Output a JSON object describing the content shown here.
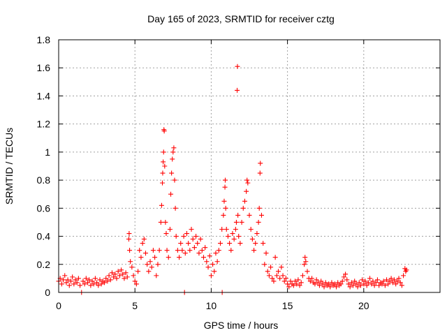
{
  "chart_data": {
    "type": "scatter",
    "title": "Day 165 of 2023, SRMTID for receiver cztg",
    "xlabel": "GPS time / hours",
    "ylabel": "SRMTID / TECUs",
    "xlim": [
      0,
      25
    ],
    "ylim": [
      0,
      1.8
    ],
    "x_ticks": [
      "0",
      "5",
      "10",
      "15",
      "20"
    ],
    "y_ticks": [
      "0",
      "0.2",
      "0.4",
      "0.6",
      "0.8",
      "1",
      "1.2",
      "1.4",
      "1.6",
      "1.8"
    ],
    "grid": true,
    "marker": "plus",
    "color": "#ff0000",
    "series": [
      {
        "name": "SRMTID",
        "points": [
          [
            0.0,
            0.08
          ],
          [
            0.1,
            0.1
          ],
          [
            0.2,
            0.06
          ],
          [
            0.3,
            0.09
          ],
          [
            0.4,
            0.12
          ],
          [
            0.5,
            0.07
          ],
          [
            0.6,
            0.09
          ],
          [
            0.7,
            0.05
          ],
          [
            0.8,
            0.08
          ],
          [
            0.9,
            0.11
          ],
          [
            1.0,
            0.06
          ],
          [
            1.1,
            0.09
          ],
          [
            1.2,
            0.07
          ],
          [
            1.3,
            0.1
          ],
          [
            1.4,
            0.05
          ],
          [
            1.5,
            0.0
          ],
          [
            1.6,
            0.08
          ],
          [
            1.7,
            0.06
          ],
          [
            1.8,
            0.1
          ],
          [
            1.9,
            0.07
          ],
          [
            2.0,
            0.09
          ],
          [
            2.1,
            0.05
          ],
          [
            2.2,
            0.08
          ],
          [
            2.3,
            0.06
          ],
          [
            2.4,
            0.1
          ],
          [
            2.5,
            0.07
          ],
          [
            2.6,
            0.05
          ],
          [
            2.7,
            0.09
          ],
          [
            2.8,
            0.06
          ],
          [
            2.9,
            0.08
          ],
          [
            3.0,
            0.07
          ],
          [
            3.1,
            0.1
          ],
          [
            3.2,
            0.08
          ],
          [
            3.3,
            0.12
          ],
          [
            3.4,
            0.09
          ],
          [
            3.5,
            0.14
          ],
          [
            3.6,
            0.11
          ],
          [
            3.7,
            0.13
          ],
          [
            3.8,
            0.1
          ],
          [
            3.9,
            0.15
          ],
          [
            4.0,
            0.12
          ],
          [
            4.1,
            0.16
          ],
          [
            4.2,
            0.13
          ],
          [
            4.3,
            0.1
          ],
          [
            4.4,
            0.14
          ],
          [
            4.5,
            0.11
          ],
          [
            4.6,
            0.38
          ],
          [
            4.62,
            0.42
          ],
          [
            4.65,
            0.3
          ],
          [
            4.7,
            0.22
          ],
          [
            4.8,
            0.18
          ],
          [
            4.9,
            0.12
          ],
          [
            5.0,
            0.08
          ],
          [
            5.1,
            0.06
          ],
          [
            5.2,
            0.15
          ],
          [
            5.3,
            0.3
          ],
          [
            5.4,
            0.25
          ],
          [
            5.5,
            0.35
          ],
          [
            5.6,
            0.38
          ],
          [
            5.7,
            0.28
          ],
          [
            5.8,
            0.2
          ],
          [
            5.9,
            0.15
          ],
          [
            6.0,
            0.22
          ],
          [
            6.1,
            0.18
          ],
          [
            6.2,
            0.3
          ],
          [
            6.3,
            0.25
          ],
          [
            6.4,
            0.12
          ],
          [
            6.5,
            0.2
          ],
          [
            6.6,
            0.3
          ],
          [
            6.7,
            0.5
          ],
          [
            6.75,
            0.62
          ],
          [
            6.8,
            0.78
          ],
          [
            6.82,
            0.85
          ],
          [
            6.85,
            0.93
          ],
          [
            6.88,
            1.0
          ],
          [
            6.9,
            1.16
          ],
          [
            6.92,
            1.15
          ],
          [
            6.95,
            0.9
          ],
          [
            7.0,
            0.5
          ],
          [
            7.05,
            0.42
          ],
          [
            7.1,
            0.3
          ],
          [
            7.2,
            0.25
          ],
          [
            7.3,
            0.45
          ],
          [
            7.35,
            0.7
          ],
          [
            7.4,
            0.85
          ],
          [
            7.45,
            0.95
          ],
          [
            7.5,
            1.0
          ],
          [
            7.55,
            1.03
          ],
          [
            7.6,
            0.8
          ],
          [
            7.65,
            0.6
          ],
          [
            7.7,
            0.4
          ],
          [
            7.8,
            0.3
          ],
          [
            7.9,
            0.25
          ],
          [
            8.0,
            0.35
          ],
          [
            8.1,
            0.3
          ],
          [
            8.2,
            0.4
          ],
          [
            8.25,
            0.0
          ],
          [
            8.3,
            0.28
          ],
          [
            8.4,
            0.42
          ],
          [
            8.5,
            0.35
          ],
          [
            8.6,
            0.3
          ],
          [
            8.7,
            0.45
          ],
          [
            8.8,
            0.38
          ],
          [
            8.9,
            0.32
          ],
          [
            9.0,
            0.4
          ],
          [
            9.1,
            0.35
          ],
          [
            9.2,
            0.28
          ],
          [
            9.3,
            0.38
          ],
          [
            9.4,
            0.3
          ],
          [
            9.5,
            0.25
          ],
          [
            9.6,
            0.32
          ],
          [
            9.7,
            0.22
          ],
          [
            9.8,
            0.18
          ],
          [
            9.9,
            0.26
          ],
          [
            10.0,
            0.12
          ],
          [
            10.1,
            0.2
          ],
          [
            10.2,
            0.15
          ],
          [
            10.3,
            0.28
          ],
          [
            10.4,
            0.22
          ],
          [
            10.5,
            0.3
          ],
          [
            10.6,
            0.35
          ],
          [
            10.7,
            0.45
          ],
          [
            10.72,
            0.0
          ],
          [
            10.8,
            0.55
          ],
          [
            10.85,
            0.65
          ],
          [
            10.9,
            0.75
          ],
          [
            10.92,
            0.8
          ],
          [
            10.95,
            0.6
          ],
          [
            11.0,
            0.45
          ],
          [
            11.1,
            0.4
          ],
          [
            11.2,
            0.35
          ],
          [
            11.3,
            0.3
          ],
          [
            11.4,
            0.42
          ],
          [
            11.5,
            0.38
          ],
          [
            11.6,
            0.45
          ],
          [
            11.65,
            0.5
          ],
          [
            11.7,
            1.44
          ],
          [
            11.72,
            1.61
          ],
          [
            11.75,
            0.55
          ],
          [
            11.8,
            0.4
          ],
          [
            11.9,
            0.35
          ],
          [
            12.0,
            0.5
          ],
          [
            12.1,
            0.6
          ],
          [
            12.2,
            0.65
          ],
          [
            12.3,
            0.72
          ],
          [
            12.35,
            0.8
          ],
          [
            12.4,
            0.78
          ],
          [
            12.5,
            0.55
          ],
          [
            12.6,
            0.45
          ],
          [
            12.7,
            0.38
          ],
          [
            12.8,
            0.3
          ],
          [
            12.9,
            0.35
          ],
          [
            13.0,
            0.42
          ],
          [
            13.1,
            0.5
          ],
          [
            13.15,
            0.6
          ],
          [
            13.2,
            0.85
          ],
          [
            13.22,
            0.92
          ],
          [
            13.3,
            0.55
          ],
          [
            13.4,
            0.35
          ],
          [
            13.5,
            0.2
          ],
          [
            13.6,
            0.28
          ],
          [
            13.7,
            0.15
          ],
          [
            13.8,
            0.12
          ],
          [
            13.9,
            0.18
          ],
          [
            14.0,
            0.1
          ],
          [
            14.1,
            0.08
          ],
          [
            14.2,
            0.25
          ],
          [
            14.3,
            0.12
          ],
          [
            14.4,
            0.15
          ],
          [
            14.5,
            0.1
          ],
          [
            14.6,
            0.18
          ],
          [
            14.7,
            0.12
          ],
          [
            14.8,
            0.08
          ],
          [
            14.9,
            0.1
          ],
          [
            15.0,
            0.06
          ],
          [
            15.1,
            0.04
          ],
          [
            15.2,
            0.08
          ],
          [
            15.3,
            0.06
          ],
          [
            15.4,
            0.05
          ],
          [
            15.5,
            0.08
          ],
          [
            15.6,
            0.06
          ],
          [
            15.7,
            0.09
          ],
          [
            15.8,
            0.05
          ],
          [
            15.9,
            0.07
          ],
          [
            16.0,
            0.12
          ],
          [
            16.1,
            0.2
          ],
          [
            16.15,
            0.25
          ],
          [
            16.2,
            0.22
          ],
          [
            16.3,
            0.15
          ],
          [
            16.4,
            0.1
          ],
          [
            16.5,
            0.08
          ],
          [
            16.6,
            0.1
          ],
          [
            16.7,
            0.07
          ],
          [
            16.8,
            0.06
          ],
          [
            16.9,
            0.09
          ],
          [
            17.0,
            0.07
          ],
          [
            17.1,
            0.05
          ],
          [
            17.2,
            0.08
          ],
          [
            17.3,
            0.06
          ],
          [
            17.4,
            0.04
          ],
          [
            17.5,
            0.07
          ],
          [
            17.6,
            0.05
          ],
          [
            17.7,
            0.06
          ],
          [
            17.8,
            0.04
          ],
          [
            17.9,
            0.07
          ],
          [
            18.0,
            0.05
          ],
          [
            18.1,
            0.06
          ],
          [
            18.2,
            0.04
          ],
          [
            18.3,
            0.07
          ],
          [
            18.4,
            0.05
          ],
          [
            18.5,
            0.06
          ],
          [
            18.6,
            0.08
          ],
          [
            18.7,
            0.11
          ],
          [
            18.8,
            0.13
          ],
          [
            18.9,
            0.09
          ],
          [
            19.0,
            0.06
          ],
          [
            19.1,
            0.04
          ],
          [
            19.2,
            0.07
          ],
          [
            19.3,
            0.05
          ],
          [
            19.4,
            0.08
          ],
          [
            19.5,
            0.06
          ],
          [
            19.6,
            0.04
          ],
          [
            19.7,
            0.07
          ],
          [
            19.8,
            0.05
          ],
          [
            19.9,
            0.09
          ],
          [
            20.0,
            0.06
          ],
          [
            20.1,
            0.08
          ],
          [
            20.2,
            0.05
          ],
          [
            20.3,
            0.07
          ],
          [
            20.4,
            0.1
          ],
          [
            20.5,
            0.06
          ],
          [
            20.6,
            0.08
          ],
          [
            20.7,
            0.05
          ],
          [
            20.8,
            0.07
          ],
          [
            20.9,
            0.09
          ],
          [
            21.0,
            0.05
          ],
          [
            21.1,
            0.07
          ],
          [
            21.2,
            0.06
          ],
          [
            21.3,
            0.08
          ],
          [
            21.4,
            0.05
          ],
          [
            21.5,
            0.09
          ],
          [
            21.6,
            0.06
          ],
          [
            21.7,
            0.08
          ],
          [
            21.8,
            0.1
          ],
          [
            21.9,
            0.07
          ],
          [
            22.0,
            0.09
          ],
          [
            22.1,
            0.06
          ],
          [
            22.2,
            0.08
          ],
          [
            22.3,
            0.1
          ],
          [
            22.4,
            0.07
          ],
          [
            22.5,
            0.05
          ],
          [
            22.6,
            0.12
          ],
          [
            22.7,
            0.17
          ],
          [
            22.75,
            0.15
          ],
          [
            22.8,
            0.16
          ]
        ]
      }
    ]
  }
}
